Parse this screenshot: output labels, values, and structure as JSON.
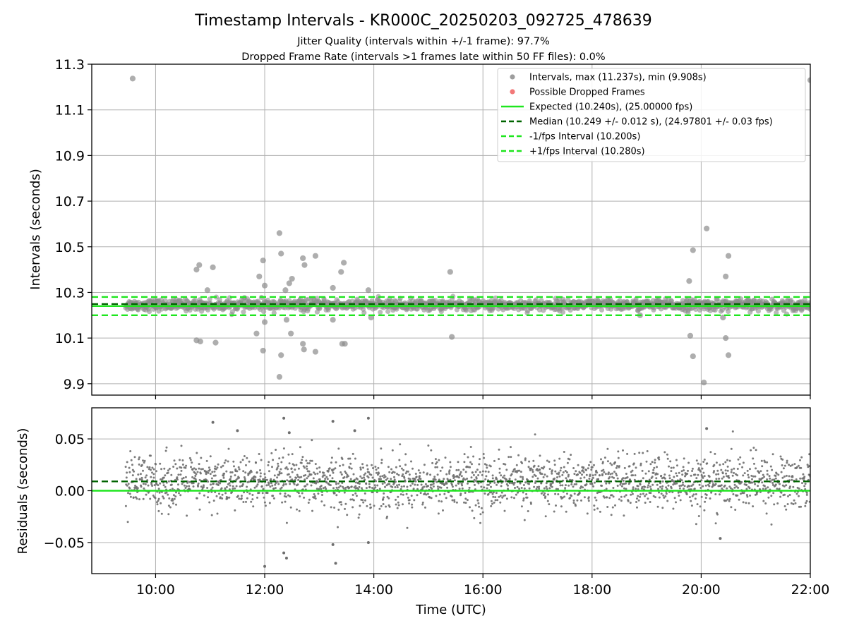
{
  "figure": {
    "title": "Timestamp Intervals - KR000C_20250203_092725_478639",
    "subtitle1": "Jitter Quality (intervals within +/-1 frame): 97.7%",
    "subtitle2": "Dropped Frame Rate (intervals >1 frames late within 50 FF files): 0.0%"
  },
  "colors": {
    "points": "#8c8c8c",
    "residual_points": "#6e6e6e",
    "dropped": "#f06060",
    "expected": "#1ee61e",
    "median": "#006400",
    "interval": "#1ee61e",
    "grid": "#b0b0b0"
  },
  "chart_data": [
    {
      "type": "scatter",
      "name": "intervals",
      "xlabel": "",
      "ylabel": "Intervals (seconds)",
      "xlim_hours": [
        8.83,
        22.0
      ],
      "ylim": [
        9.85,
        11.3
      ],
      "yticks": [
        9.9,
        10.1,
        10.3,
        10.5,
        10.7,
        10.9,
        11.1,
        11.3
      ],
      "ytick_labels": [
        "9.9",
        "10.1",
        "10.3",
        "10.5",
        "10.7",
        "10.9",
        "11.1",
        "11.3"
      ],
      "grid": true,
      "legend_position": "top-right",
      "data_range_hours": [
        9.45,
        22.0
      ],
      "baseline": {
        "center": 10.245,
        "spread": 0.012
      },
      "outliers": [
        {
          "x": 9.58,
          "y": 11.237
        },
        {
          "x": 22.0,
          "y": 11.23
        },
        {
          "x": 10.75,
          "y": 10.4
        },
        {
          "x": 10.8,
          "y": 10.42
        },
        {
          "x": 11.05,
          "y": 10.41
        },
        {
          "x": 10.95,
          "y": 10.31
        },
        {
          "x": 10.75,
          "y": 10.09
        },
        {
          "x": 10.82,
          "y": 10.085
        },
        {
          "x": 11.1,
          "y": 10.08
        },
        {
          "x": 11.9,
          "y": 10.37
        },
        {
          "x": 11.97,
          "y": 10.44
        },
        {
          "x": 12.0,
          "y": 10.33
        },
        {
          "x": 11.85,
          "y": 10.12
        },
        {
          "x": 11.97,
          "y": 10.045
        },
        {
          "x": 12.0,
          "y": 10.17
        },
        {
          "x": 12.27,
          "y": 10.56
        },
        {
          "x": 12.3,
          "y": 10.47
        },
        {
          "x": 12.45,
          "y": 10.34
        },
        {
          "x": 12.5,
          "y": 10.36
        },
        {
          "x": 12.38,
          "y": 10.31
        },
        {
          "x": 12.4,
          "y": 10.18
        },
        {
          "x": 12.48,
          "y": 10.12
        },
        {
          "x": 12.3,
          "y": 10.025
        },
        {
          "x": 12.27,
          "y": 9.93
        },
        {
          "x": 12.7,
          "y": 10.45
        },
        {
          "x": 12.73,
          "y": 10.42
        },
        {
          "x": 12.93,
          "y": 10.46
        },
        {
          "x": 12.7,
          "y": 10.075
        },
        {
          "x": 12.72,
          "y": 10.05
        },
        {
          "x": 12.93,
          "y": 10.04
        },
        {
          "x": 13.25,
          "y": 10.32
        },
        {
          "x": 13.4,
          "y": 10.39
        },
        {
          "x": 13.45,
          "y": 10.43
        },
        {
          "x": 13.25,
          "y": 10.18
        },
        {
          "x": 13.42,
          "y": 10.075
        },
        {
          "x": 13.47,
          "y": 10.075
        },
        {
          "x": 13.9,
          "y": 10.31
        },
        {
          "x": 13.95,
          "y": 10.19
        },
        {
          "x": 15.4,
          "y": 10.39
        },
        {
          "x": 15.43,
          "y": 10.105
        },
        {
          "x": 18.88,
          "y": 10.2
        },
        {
          "x": 19.78,
          "y": 10.35
        },
        {
          "x": 19.85,
          "y": 10.485
        },
        {
          "x": 19.8,
          "y": 10.11
        },
        {
          "x": 19.85,
          "y": 10.02
        },
        {
          "x": 20.1,
          "y": 10.58
        },
        {
          "x": 20.05,
          "y": 9.905
        },
        {
          "x": 20.4,
          "y": 10.19
        },
        {
          "x": 20.45,
          "y": 10.37
        },
        {
          "x": 20.5,
          "y": 10.46
        },
        {
          "x": 20.45,
          "y": 10.1
        },
        {
          "x": 20.5,
          "y": 10.025
        }
      ],
      "series": [
        {
          "name": "Intervals, max (11.237s), min (9.908s)",
          "kind": "points"
        },
        {
          "name": "Possible Dropped Frames",
          "kind": "points",
          "count": 0
        },
        {
          "name": "Expected (10.240s), (25.00000 fps)",
          "kind": "line",
          "value": 10.24
        },
        {
          "name": "Median (10.249 +/- 0.012 s), (24.97801 +/- 0.03 fps)",
          "kind": "line",
          "value": 10.249
        },
        {
          "name": "-1/fps Interval (10.200s)",
          "kind": "line",
          "value": 10.2
        },
        {
          "name": "+1/fps Interval (10.280s)",
          "kind": "line",
          "value": 10.28
        }
      ]
    },
    {
      "type": "scatter",
      "name": "residuals",
      "xlabel": "Time (UTC)",
      "ylabel": "Residuals (seconds)",
      "xlim_hours": [
        8.83,
        22.0
      ],
      "ylim": [
        -0.08,
        0.08
      ],
      "yticks": [
        -0.05,
        0.0,
        0.05
      ],
      "ytick_labels": [
        "−0.05",
        "0.00",
        "0.05"
      ],
      "xticks_hours": [
        10,
        12,
        14,
        16,
        18,
        20,
        22
      ],
      "xtick_labels": [
        "10:00",
        "12:00",
        "14:00",
        "16:00",
        "18:00",
        "20:00",
        "22:00"
      ],
      "grid": true,
      "data_range_hours": [
        9.45,
        22.0
      ],
      "baseline": {
        "center": 0.008,
        "spread": 0.013
      },
      "outliers": [
        {
          "x": 12.0,
          "y": -0.073
        },
        {
          "x": 13.3,
          "y": -0.07
        },
        {
          "x": 13.25,
          "y": -0.052
        },
        {
          "x": 12.35,
          "y": -0.06
        },
        {
          "x": 12.4,
          "y": -0.065
        },
        {
          "x": 13.9,
          "y": -0.05
        },
        {
          "x": 20.35,
          "y": -0.046
        },
        {
          "x": 12.35,
          "y": 0.07
        },
        {
          "x": 13.25,
          "y": 0.067
        },
        {
          "x": 13.9,
          "y": 0.07
        },
        {
          "x": 11.05,
          "y": 0.066
        },
        {
          "x": 12.45,
          "y": 0.056
        },
        {
          "x": 11.5,
          "y": 0.058
        },
        {
          "x": 20.1,
          "y": 0.06
        },
        {
          "x": 13.65,
          "y": 0.058
        }
      ],
      "series": [
        {
          "name": "Median",
          "kind": "line",
          "value": 0.009
        },
        {
          "name": "Expected",
          "kind": "line",
          "value": 0.0
        }
      ]
    }
  ]
}
